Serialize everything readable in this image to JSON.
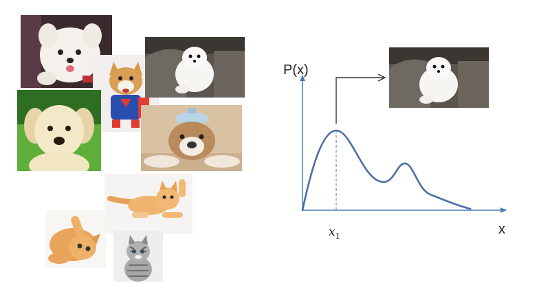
{
  "diagram": {
    "y_axis_label": "P(x)",
    "x_axis_label": "x",
    "sample_point_label": "x",
    "sample_point_subscript": "1",
    "curve_color": "#4a6fa5",
    "axis_color": "#4a7ab5"
  },
  "images": {
    "collage": [
      {
        "subject": "white-puppy-on-back",
        "kind": "dog"
      },
      {
        "subject": "corgi-in-superman-costume",
        "kind": "dog"
      },
      {
        "subject": "white-pomeranian-on-couch",
        "kind": "dog"
      },
      {
        "subject": "golden-retriever-puppy",
        "kind": "dog"
      },
      {
        "subject": "bulldog-with-ice-bag",
        "kind": "dog"
      },
      {
        "subject": "orange-kitten-leaping",
        "kind": "cat"
      },
      {
        "subject": "orange-kitten-lying",
        "kind": "cat"
      },
      {
        "subject": "tabby-kitten-sitting",
        "kind": "cat"
      }
    ],
    "sampled": {
      "subject": "white-pomeranian-on-couch",
      "kind": "dog"
    }
  }
}
